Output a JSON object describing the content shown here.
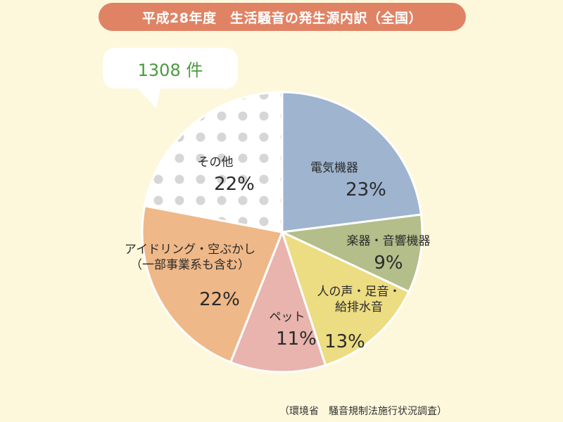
{
  "title": "平成28年度　生活騒音の発生源内訳（全国）",
  "total_label": "1308 件",
  "source": "（環境省　騒音規制法施行状況調査）",
  "colors": {
    "title_bg": "#e08364",
    "page_bg": "#fdf8dc",
    "bubble_text": "#4a9a3e"
  },
  "chart_data": {
    "type": "pie",
    "start_angle_deg": 0,
    "direction": "clockwise",
    "slices": [
      {
        "label_lines": [
          "電気機器"
        ],
        "value": 23,
        "value_label": "23%",
        "color": "#9eb4cf"
      },
      {
        "label_lines": [
          "楽器・音響機器"
        ],
        "value": 9,
        "value_label": "9%",
        "color": "#b3be8a"
      },
      {
        "label_lines": [
          "人の声・足音・",
          "給排水音"
        ],
        "value": 13,
        "value_label": "13%",
        "color": "#ecdc82"
      },
      {
        "label_lines": [
          "ペット"
        ],
        "value": 11,
        "value_label": "11%",
        "color": "#e8b4ad"
      },
      {
        "label_lines": [
          "アイドリング・空ぶかし",
          "（一部事業系も含む）"
        ],
        "value": 22,
        "value_label": "22%",
        "color": "#efb888"
      },
      {
        "label_lines": [
          "その他"
        ],
        "value": 22,
        "value_label": "22%",
        "color": "#ffffff",
        "pattern": "dots"
      }
    ]
  }
}
